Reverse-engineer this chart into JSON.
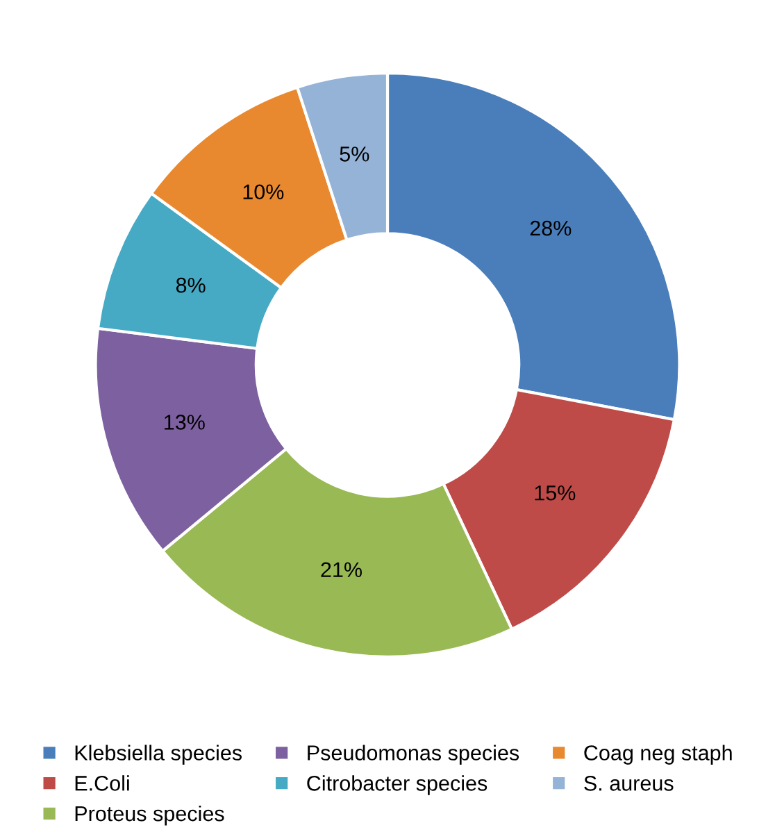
{
  "chart_data": {
    "type": "donut",
    "categories": [
      "Klebsiella species",
      "E.Coli",
      "Proteus species",
      "Pseudomonas species",
      "Citrobacter species",
      "Coag neg staph",
      "S. aureus"
    ],
    "values": [
      28,
      15,
      21,
      13,
      8,
      10,
      5
    ],
    "colors": [
      "#4a7ebb",
      "#be4b48",
      "#98b954",
      "#7d60a0",
      "#46aac5",
      "#e8892f",
      "#95b3d7"
    ],
    "value_labels": [
      "28%",
      "15%",
      "21%",
      "13%",
      "8%",
      "10%",
      "5%"
    ],
    "legend": "bottom"
  }
}
